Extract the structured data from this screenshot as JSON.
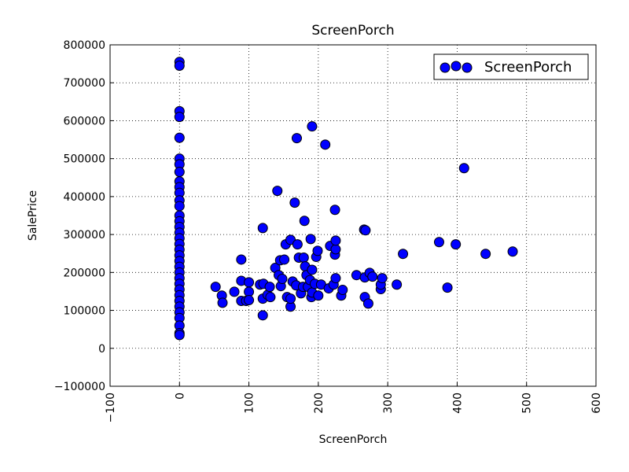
{
  "chart_data": {
    "type": "scatter",
    "title": "ScreenPorch",
    "x_label": "ScreenPorch",
    "y_label": "SalePrice",
    "xlim": [
      -100,
      600
    ],
    "ylim": [
      -100000,
      800000
    ],
    "xticks": [
      {
        "value": -100,
        "label": "−100"
      },
      0,
      100,
      200,
      300,
      400,
      500,
      600
    ],
    "yticks": [
      {
        "value": -100000,
        "label": "−100000"
      },
      0,
      100000,
      200000,
      300000,
      400000,
      500000,
      600000,
      700000,
      800000
    ],
    "grid": true,
    "legend": "upper right",
    "series": [
      {
        "name": "ScreenPorch",
        "color": "#0000ff",
        "x": [
          0,
          0,
          0,
          0,
          0,
          0,
          0,
          0,
          0,
          0,
          0,
          0,
          0,
          0,
          0,
          0,
          0,
          0,
          0,
          0,
          0,
          0,
          0,
          0,
          0,
          0,
          0,
          0,
          0,
          0,
          0,
          0,
          0,
          0,
          0,
          52,
          61,
          62,
          79,
          89,
          89,
          89,
          96,
          100,
          100,
          100,
          116,
          120,
          120,
          120,
          121,
          127,
          130,
          131,
          138,
          141,
          143,
          145,
          146,
          148,
          151,
          153,
          155,
          160,
          160,
          160,
          163,
          166,
          168,
          169,
          170,
          172,
          175,
          178,
          179,
          180,
          181,
          183,
          185,
          188,
          189,
          191,
          191,
          190,
          191,
          195,
          197,
          199,
          200,
          204,
          210,
          215,
          217,
          222,
          224,
          225,
          225,
          224,
          225,
          233,
          235,
          255,
          266,
          267,
          268,
          267,
          272,
          274,
          278,
          290,
          290,
          292,
          313,
          322,
          374,
          386,
          398,
          410,
          441,
          480
        ],
        "values": [
          755000,
          745000,
          625000,
          610000,
          555000,
          500000,
          485000,
          465000,
          440000,
          425000,
          410000,
          390000,
          375000,
          350000,
          335000,
          320000,
          305000,
          290000,
          275000,
          260000,
          245000,
          230000,
          215000,
          200000,
          185000,
          170000,
          155000,
          140000,
          125000,
          110000,
          95000,
          80000,
          60000,
          40000,
          35000,
          162000,
          139000,
          120000,
          149000,
          234000,
          178000,
          125000,
          125000,
          174000,
          149000,
          127000,
          168000,
          317000,
          87000,
          131000,
          170000,
          141000,
          162000,
          135000,
          212000,
          415000,
          193000,
          232000,
          164000,
          183000,
          234000,
          274000,
          135000,
          110000,
          131000,
          286000,
          176000,
          384000,
          166000,
          554000,
          274000,
          239000,
          145000,
          162000,
          239000,
          336000,
          216000,
          193000,
          162000,
          180000,
          288000,
          207000,
          585000,
          135000,
          147000,
          170000,
          241000,
          257000,
          139000,
          168000,
          537000,
          158000,
          270000,
          168000,
          247000,
          261000,
          284000,
          365000,
          185000,
          139000,
          154000,
          193000,
          313000,
          187000,
          311000,
          135000,
          118000,
          199000,
          189000,
          156000,
          168000,
          185000,
          168000,
          249000,
          280000,
          160000,
          274000,
          475000,
          249000,
          255000
        ]
      }
    ]
  }
}
